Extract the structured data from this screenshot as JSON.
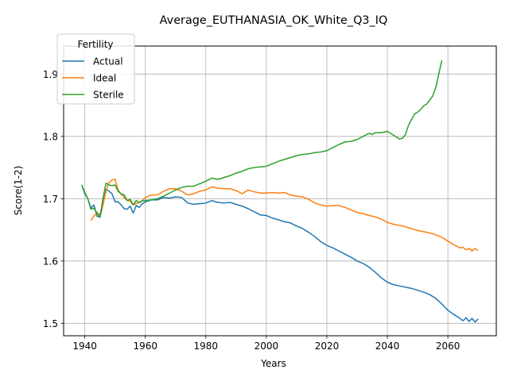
{
  "chart_data": {
    "type": "line",
    "title": "Average_EUTHANASIA_OK_White_Q3_IQ",
    "xlabel": "Years",
    "ylabel": "Score(1-2)",
    "xlim": [
      1933,
      2076
    ],
    "ylim": [
      1.48,
      1.945
    ],
    "xticks": [
      1940,
      1960,
      1980,
      2000,
      2020,
      2040,
      2060
    ],
    "yticks": [
      1.5,
      1.6,
      1.7,
      1.8,
      1.9
    ],
    "xtick_labels": [
      "1940",
      "1960",
      "1980",
      "2000",
      "2020",
      "2040",
      "2060"
    ],
    "ytick_labels": [
      "1.5",
      "1.6",
      "1.7",
      "1.8",
      "1.9"
    ],
    "grid": true,
    "legend": {
      "title": "Fertility",
      "placement": "upper left"
    },
    "series": [
      {
        "name": "Actual",
        "color": "#1f77b4",
        "x": [
          1939,
          1940,
          1941,
          1942,
          1943,
          1944,
          1945,
          1946,
          1947,
          1948,
          1949,
          1950,
          1951,
          1952,
          1953,
          1954,
          1955,
          1956,
          1957,
          1958,
          1959,
          1960,
          1962,
          1964,
          1966,
          1968,
          1970,
          1972,
          1974,
          1976,
          1978,
          1980,
          1982,
          1984,
          1986,
          1988,
          1990,
          1992,
          1994,
          1996,
          1998,
          2000,
          2002,
          2004,
          2006,
          2008,
          2010,
          2012,
          2014,
          2016,
          2018,
          2020,
          2022,
          2024,
          2026,
          2028,
          2030,
          2032,
          2034,
          2036,
          2038,
          2040,
          2042,
          2044,
          2046,
          2048,
          2050,
          2052,
          2054,
          2056,
          2058,
          2060,
          2062,
          2064,
          2065,
          2066,
          2067,
          2068,
          2069,
          2070
        ],
        "y": [
          1.722,
          1.708,
          1.7,
          1.685,
          1.69,
          1.672,
          1.67,
          1.69,
          1.715,
          1.712,
          1.708,
          1.695,
          1.695,
          1.69,
          1.684,
          1.683,
          1.688,
          1.677,
          1.689,
          1.686,
          1.692,
          1.695,
          1.698,
          1.698,
          1.702,
          1.701,
          1.703,
          1.702,
          1.693,
          1.691,
          1.692,
          1.693,
          1.697,
          1.694,
          1.693,
          1.694,
          1.691,
          1.688,
          1.684,
          1.679,
          1.674,
          1.673,
          1.669,
          1.666,
          1.663,
          1.661,
          1.656,
          1.652,
          1.646,
          1.639,
          1.631,
          1.625,
          1.621,
          1.616,
          1.611,
          1.606,
          1.6,
          1.596,
          1.59,
          1.582,
          1.573,
          1.566,
          1.562,
          1.56,
          1.558,
          1.556,
          1.553,
          1.55,
          1.546,
          1.54,
          1.531,
          1.521,
          1.514,
          1.508,
          1.504,
          1.509,
          1.503,
          1.508,
          1.502,
          1.507
        ]
      },
      {
        "name": "Ideal",
        "color": "#ff7f0e",
        "x": [
          1942,
          1943,
          1944,
          1945,
          1946,
          1947,
          1948,
          1949,
          1950,
          1951,
          1952,
          1953,
          1954,
          1955,
          1956,
          1957,
          1958,
          1959,
          1960,
          1962,
          1964,
          1966,
          1968,
          1970,
          1972,
          1974,
          1976,
          1978,
          1980,
          1982,
          1984,
          1986,
          1988,
          1990,
          1992,
          1994,
          1996,
          1998,
          2000,
          2002,
          2004,
          2006,
          2008,
          2010,
          2012,
          2014,
          2016,
          2018,
          2020,
          2022,
          2024,
          2026,
          2028,
          2030,
          2032,
          2034,
          2036,
          2038,
          2040,
          2042,
          2044,
          2046,
          2048,
          2050,
          2052,
          2054,
          2056,
          2058,
          2060,
          2062,
          2064,
          2065,
          2066,
          2067,
          2068,
          2069,
          2070
        ],
        "y": [
          1.665,
          1.672,
          1.678,
          1.674,
          1.69,
          1.712,
          1.726,
          1.73,
          1.731,
          1.714,
          1.707,
          1.702,
          1.697,
          1.696,
          1.69,
          1.692,
          1.694,
          1.696,
          1.702,
          1.706,
          1.706,
          1.712,
          1.716,
          1.716,
          1.712,
          1.706,
          1.708,
          1.712,
          1.714,
          1.719,
          1.717,
          1.716,
          1.716,
          1.713,
          1.708,
          1.714,
          1.711,
          1.709,
          1.709,
          1.71,
          1.709,
          1.71,
          1.706,
          1.704,
          1.703,
          1.699,
          1.693,
          1.69,
          1.688,
          1.689,
          1.689,
          1.686,
          1.682,
          1.678,
          1.676,
          1.673,
          1.671,
          1.667,
          1.662,
          1.659,
          1.657,
          1.655,
          1.652,
          1.649,
          1.647,
          1.645,
          1.642,
          1.638,
          1.632,
          1.626,
          1.621,
          1.622,
          1.618,
          1.62,
          1.616,
          1.62,
          1.617
        ]
      },
      {
        "name": "Sterile",
        "color": "#2ca02c",
        "x": [
          1939,
          1940,
          1941,
          1942,
          1943,
          1944,
          1945,
          1946,
          1947,
          1948,
          1949,
          1950,
          1951,
          1952,
          1953,
          1954,
          1955,
          1956,
          1957,
          1958,
          1959,
          1960,
          1962,
          1964,
          1966,
          1968,
          1970,
          1972,
          1974,
          1976,
          1978,
          1980,
          1982,
          1984,
          1986,
          1988,
          1990,
          1992,
          1994,
          1996,
          1998,
          2000,
          2002,
          2004,
          2006,
          2008,
          2010,
          2012,
          2014,
          2016,
          2018,
          2020,
          2022,
          2024,
          2026,
          2028,
          2030,
          2032,
          2034,
          2035,
          2036,
          2038,
          2040,
          2042,
          2044,
          2045,
          2046,
          2047,
          2048,
          2049,
          2050,
          2051,
          2052,
          2053,
          2054,
          2055,
          2056,
          2057,
          2058
        ],
        "y": [
          1.722,
          1.71,
          1.7,
          1.683,
          1.685,
          1.677,
          1.67,
          1.7,
          1.725,
          1.722,
          1.721,
          1.722,
          1.712,
          1.708,
          1.706,
          1.697,
          1.699,
          1.69,
          1.697,
          1.694,
          1.697,
          1.697,
          1.698,
          1.7,
          1.704,
          1.709,
          1.714,
          1.718,
          1.72,
          1.72,
          1.724,
          1.728,
          1.733,
          1.731,
          1.734,
          1.737,
          1.741,
          1.744,
          1.748,
          1.75,
          1.751,
          1.752,
          1.756,
          1.76,
          1.763,
          1.766,
          1.769,
          1.771,
          1.772,
          1.774,
          1.775,
          1.777,
          1.782,
          1.787,
          1.791,
          1.792,
          1.795,
          1.8,
          1.805,
          1.803,
          1.806,
          1.806,
          1.808,
          1.802,
          1.796,
          1.797,
          1.803,
          1.818,
          1.827,
          1.836,
          1.839,
          1.843,
          1.849,
          1.852,
          1.858,
          1.865,
          1.878,
          1.9,
          1.922
        ]
      }
    ]
  }
}
